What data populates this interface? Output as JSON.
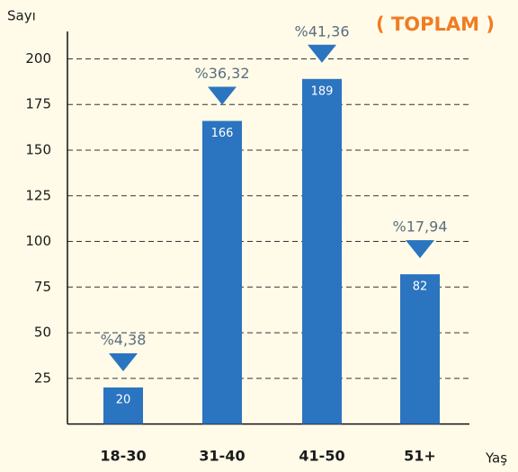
{
  "chart_data": {
    "type": "bar",
    "title": "( TOPLAM )",
    "y_label": "Sayı",
    "x_label": "Yaş",
    "categories": [
      "18-30",
      "31-40",
      "41-50",
      "51+"
    ],
    "values": [
      20,
      166,
      189,
      82
    ],
    "annotations": [
      "%4,38",
      "%36,32",
      "%41,36",
      "%17,94"
    ],
    "color": "#2b74c0",
    "ylim": [
      0,
      215
    ],
    "yticks": [
      25,
      50,
      75,
      100,
      125,
      150,
      175,
      200
    ],
    "grid": true
  }
}
